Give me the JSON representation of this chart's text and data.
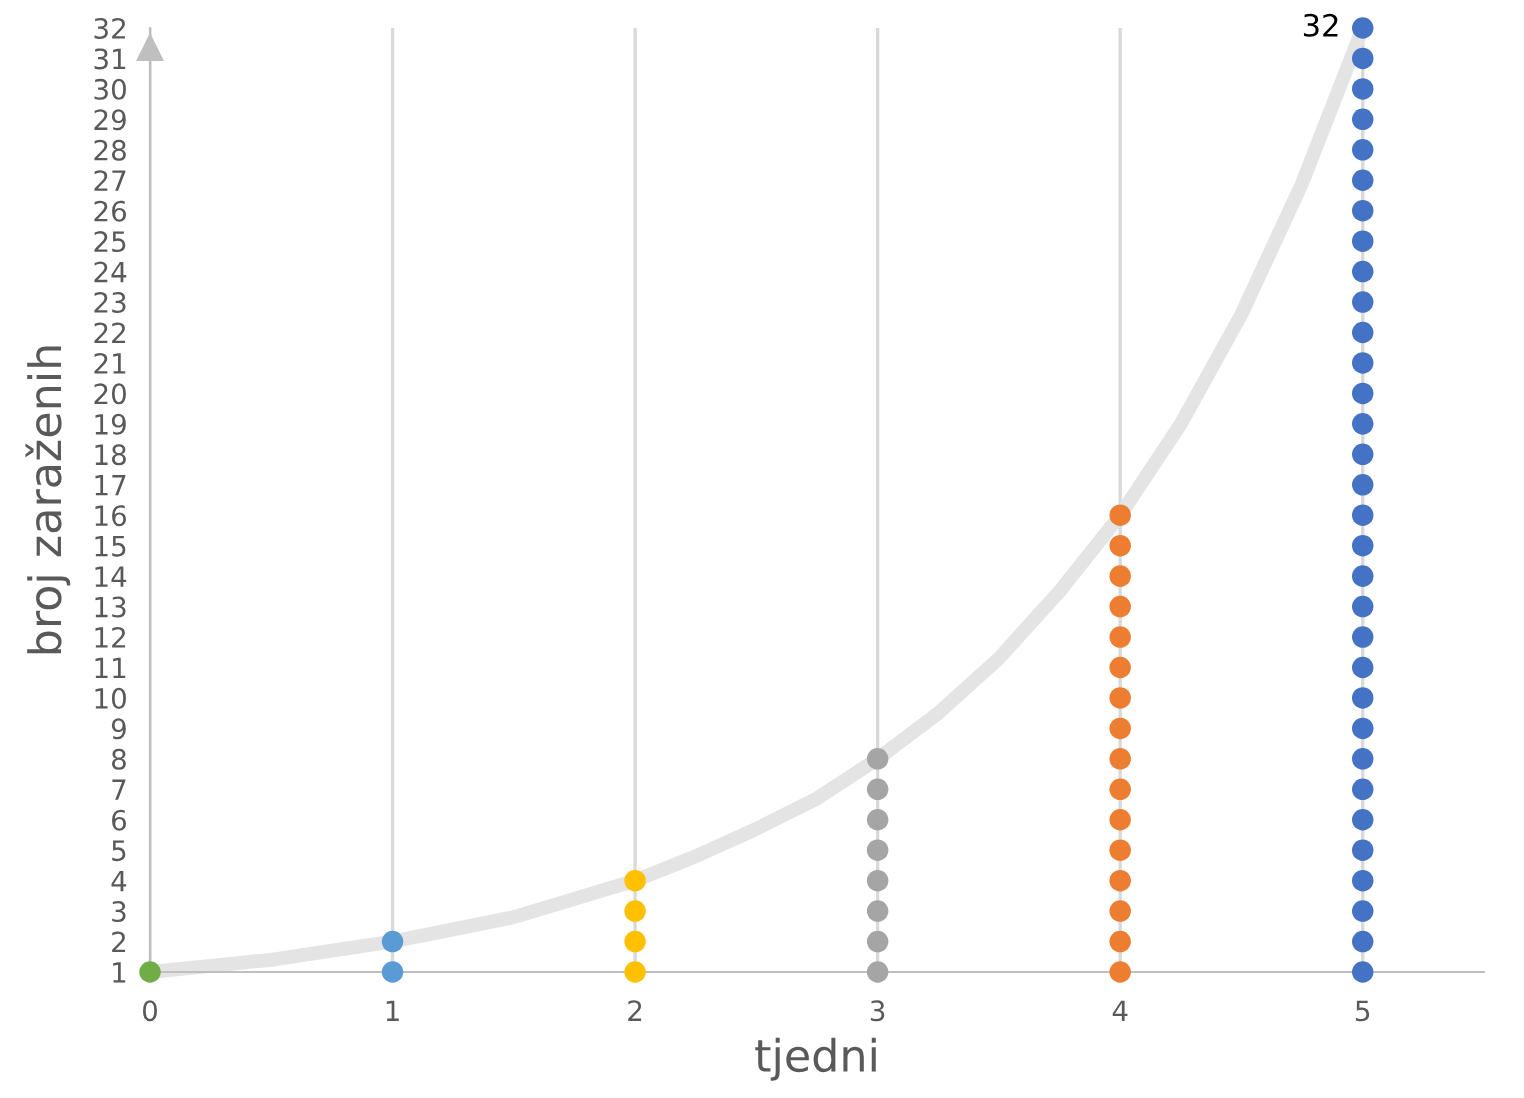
{
  "chart_data": {
    "type": "scatter",
    "xlabel": "tjedni",
    "ylabel": "broj zaraženih",
    "xlim": [
      0,
      5.5
    ],
    "xticks": [
      0,
      1,
      2,
      3,
      4,
      5
    ],
    "ylim": [
      1,
      32
    ],
    "yticks": [
      1,
      2,
      3,
      4,
      5,
      6,
      7,
      8,
      9,
      10,
      11,
      12,
      13,
      14,
      15,
      16,
      17,
      18,
      19,
      20,
      21,
      22,
      23,
      24,
      25,
      26,
      27,
      28,
      29,
      30,
      31,
      32
    ],
    "grid": "x",
    "marker": "circle",
    "annotations": [
      {
        "text": "32",
        "x": 5,
        "y": 32
      }
    ],
    "series": [
      {
        "type": "line",
        "color": "#e3e4e3",
        "marker": "none",
        "x": [
          0,
          0.25,
          0.5,
          0.75,
          1,
          1.25,
          1.5,
          1.75,
          2,
          2.25,
          2.5,
          2.75,
          3,
          3.25,
          3.5,
          3.75,
          4,
          4.25,
          4.5,
          4.75,
          5
        ],
        "values": [
          1,
          1.2,
          1.4,
          1.7,
          2,
          2.4,
          2.8,
          3.4,
          4,
          4.8,
          5.7,
          6.7,
          8,
          9.5,
          11.3,
          13.5,
          16,
          19,
          22.6,
          26.9,
          32
        ]
      },
      {
        "color": "#70ad47",
        "x": [
          0
        ],
        "values": [
          1
        ]
      },
      {
        "color": "#5b9bd5",
        "x": [
          1,
          1
        ],
        "values": [
          1,
          2
        ]
      },
      {
        "color": "#ffc000",
        "x": [
          2,
          2,
          2,
          2
        ],
        "values": [
          1,
          2,
          3,
          4
        ]
      },
      {
        "color": "#a5a5a5",
        "x": [
          3,
          3,
          3,
          3,
          3,
          3,
          3,
          3
        ],
        "values": [
          1,
          2,
          3,
          4,
          5,
          6,
          7,
          8
        ]
      },
      {
        "color": "#ed7d31",
        "x": [
          4,
          4,
          4,
          4,
          4,
          4,
          4,
          4,
          4,
          4,
          4,
          4,
          4,
          4,
          4,
          4
        ],
        "values": [
          1,
          2,
          3,
          4,
          5,
          6,
          7,
          8,
          9,
          10,
          11,
          12,
          13,
          14,
          15,
          16
        ]
      },
      {
        "color": "#4472c4",
        "x": [
          5,
          5,
          5,
          5,
          5,
          5,
          5,
          5,
          5,
          5,
          5,
          5,
          5,
          5,
          5,
          5,
          5,
          5,
          5,
          5,
          5,
          5,
          5,
          5,
          5,
          5,
          5,
          5,
          5,
          5,
          5,
          5
        ],
        "values": [
          1,
          2,
          3,
          4,
          5,
          6,
          7,
          8,
          9,
          10,
          11,
          12,
          13,
          14,
          15,
          16,
          17,
          18,
          19,
          20,
          21,
          22,
          23,
          24,
          25,
          26,
          27,
          28,
          29,
          30,
          31,
          32
        ]
      }
    ]
  }
}
